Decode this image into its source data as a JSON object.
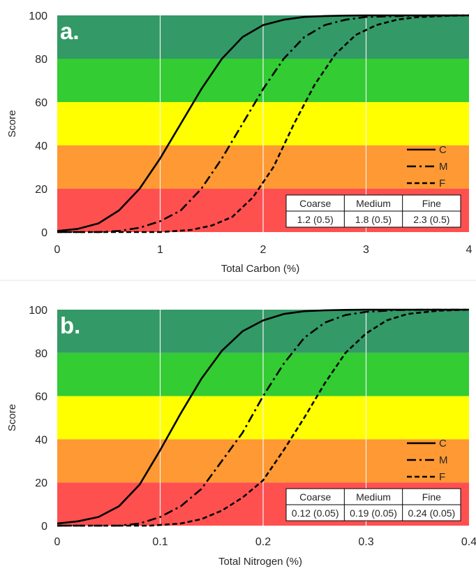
{
  "colors": {
    "band_0_20": "#ff5050",
    "band_20_40": "#ff9933",
    "band_40_60": "#ffff00",
    "band_60_80": "#33cc33",
    "band_80_100": "#339966",
    "curve": "#000000"
  },
  "chart_data": [
    {
      "type": "line",
      "panel_label": "a.",
      "xlabel": "Total Carbon (%)",
      "ylabel": "Score",
      "xlim": [
        0,
        4
      ],
      "ylim": [
        0,
        100
      ],
      "x_ticks": [
        "0",
        "1",
        "2",
        "3",
        "4"
      ],
      "y_ticks": [
        "0",
        "20",
        "40",
        "60",
        "80",
        "100"
      ],
      "score_bands": [
        0,
        20,
        40,
        60,
        80,
        100
      ],
      "legend_position": "right",
      "series": [
        {
          "name": "C",
          "line_style": "solid",
          "x": [
            0,
            0.2,
            0.4,
            0.6,
            0.8,
            1.0,
            1.2,
            1.4,
            1.6,
            1.8,
            2.0,
            2.2,
            2.4,
            2.6,
            2.8,
            3.0,
            3.5,
            4.0
          ],
          "y": [
            0.5,
            1.5,
            4,
            10,
            20,
            34,
            50,
            66,
            80,
            90,
            95.5,
            98,
            99.3,
            99.7,
            99.9,
            100,
            100,
            100
          ]
        },
        {
          "name": "M",
          "line_style": "dash-dot",
          "x": [
            0,
            0.4,
            0.6,
            0.8,
            1.0,
            1.2,
            1.4,
            1.6,
            1.8,
            2.0,
            2.2,
            2.4,
            2.6,
            2.8,
            3.0,
            3.5,
            4.0
          ],
          "y": [
            0,
            0,
            0.5,
            2,
            5,
            10,
            20,
            34,
            50,
            66,
            80,
            90,
            95.5,
            98,
            99.3,
            99.9,
            100
          ]
        },
        {
          "name": "F",
          "line_style": "dashed",
          "x": [
            0,
            1.0,
            1.3,
            1.5,
            1.7,
            1.9,
            2.1,
            2.3,
            2.5,
            2.7,
            2.9,
            3.1,
            3.3,
            3.5,
            3.8,
            4.0
          ],
          "y": [
            0,
            0,
            1,
            3,
            7,
            16,
            30,
            50,
            68,
            82,
            91,
            95.5,
            98,
            99.2,
            99.8,
            100
          ]
        }
      ],
      "table": {
        "headers": [
          "Coarse",
          "Medium",
          "Fine"
        ],
        "values": [
          "1.2 (0.5)",
          "1.8 (0.5)",
          "2.3 (0.5)"
        ]
      }
    },
    {
      "type": "line",
      "panel_label": "b.",
      "xlabel": "Total Nitrogen (%)",
      "ylabel": "Score",
      "xlim": [
        0,
        0.4
      ],
      "ylim": [
        0,
        100
      ],
      "x_ticks": [
        "0",
        "0.1",
        "0.2",
        "0.3",
        "0.4"
      ],
      "y_ticks": [
        "0",
        "20",
        "40",
        "60",
        "80",
        "100"
      ],
      "score_bands": [
        0,
        20,
        40,
        60,
        80,
        100
      ],
      "legend_position": "right",
      "series": [
        {
          "name": "C",
          "line_style": "solid",
          "x": [
            0,
            0.02,
            0.04,
            0.06,
            0.08,
            0.1,
            0.12,
            0.14,
            0.16,
            0.18,
            0.2,
            0.22,
            0.24,
            0.26,
            0.28,
            0.3,
            0.35,
            0.4
          ],
          "y": [
            1,
            2,
            4,
            9,
            19,
            35,
            52,
            68,
            81,
            90,
            95,
            98,
            99.3,
            99.7,
            99.9,
            100,
            100,
            100
          ]
        },
        {
          "name": "M",
          "line_style": "dash-dot",
          "x": [
            0,
            0.06,
            0.08,
            0.1,
            0.12,
            0.14,
            0.16,
            0.18,
            0.2,
            0.22,
            0.24,
            0.26,
            0.28,
            0.3,
            0.33,
            0.36,
            0.4
          ],
          "y": [
            0,
            0,
            1,
            4,
            9,
            17,
            30,
            43,
            60,
            75,
            87,
            94,
            97.5,
            99,
            99.8,
            100,
            100
          ]
        },
        {
          "name": "F",
          "line_style": "dashed",
          "x": [
            0,
            0.09,
            0.12,
            0.14,
            0.16,
            0.18,
            0.2,
            0.22,
            0.24,
            0.26,
            0.28,
            0.3,
            0.32,
            0.34,
            0.37,
            0.4
          ],
          "y": [
            0,
            0,
            1,
            3,
            7,
            13,
            21,
            35,
            50,
            66,
            80,
            89,
            95,
            98,
            99.5,
            100
          ]
        }
      ],
      "table": {
        "headers": [
          "Coarse",
          "Medium",
          "Fine"
        ],
        "values": [
          "0.12 (0.05)",
          "0.19 (0.05)",
          "0.24 (0.05)"
        ]
      }
    }
  ]
}
